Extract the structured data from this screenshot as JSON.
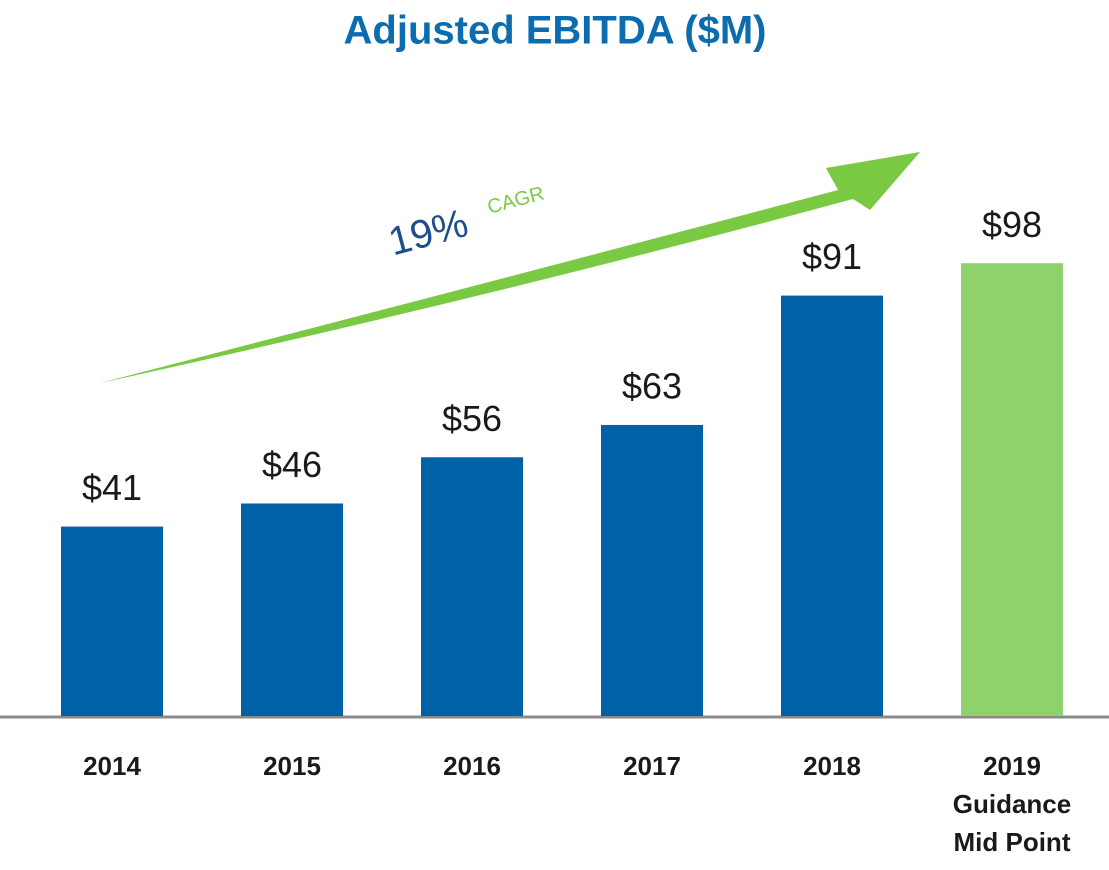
{
  "chart_data": {
    "type": "bar",
    "title": "Adjusted EBITDA ($M)",
    "categories": [
      "2014",
      "2015",
      "2016",
      "2017",
      "2018",
      "2019\nGuidance\nMid Point"
    ],
    "values": [
      41,
      46,
      56,
      63,
      91,
      98
    ],
    "value_labels": [
      "$41",
      "$46",
      "$56",
      "$63",
      "$91",
      "$98"
    ],
    "colors": [
      "#0062a6",
      "#0062a6",
      "#0062a6",
      "#0062a6",
      "#0062a6",
      "#8fd16a"
    ],
    "annotations": [
      "19%",
      "CAGR"
    ]
  }
}
